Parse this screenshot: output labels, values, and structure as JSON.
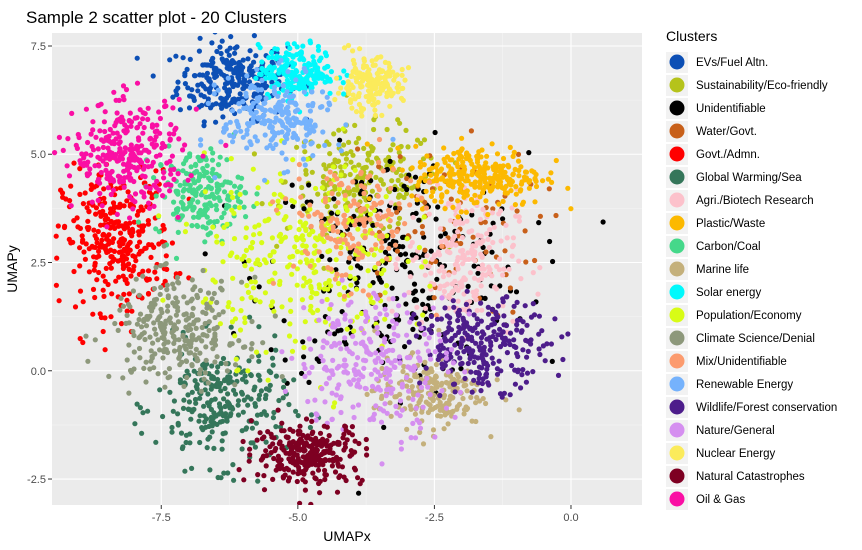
{
  "chart_data": {
    "type": "scatter",
    "title": "Sample 2 scatter plot - 20 Clusters",
    "xlabel": "UMAPx",
    "ylabel": "UMAPy",
    "xlim": [
      -9.5,
      1.3
    ],
    "ylim": [
      -3.1,
      7.8
    ],
    "xticks": [
      -7.5,
      -5.0,
      -2.5,
      0.0
    ],
    "xtick_labels": [
      "-7.5",
      "-5.0",
      "-2.5",
      "0.0"
    ],
    "yticks": [
      -2.5,
      0.0,
      2.5,
      5.0,
      7.5
    ],
    "ytick_labels": [
      "-2.5",
      "0.0",
      "2.5",
      "5.0",
      "7.5"
    ],
    "grid": true,
    "legend_title": "Clusters",
    "legend_position": "right",
    "series": [
      {
        "name": "EVs/Fuel Altn.",
        "color": "#0c4fb5",
        "center": [
          -6.2,
          6.7
        ],
        "spread": [
          0.5,
          0.45
        ],
        "n": 260
      },
      {
        "name": "Sustainability/Eco-friendly",
        "color": "#b5c31b",
        "center": [
          -3.8,
          4.4
        ],
        "spread": [
          0.7,
          0.6
        ],
        "n": 220
      },
      {
        "name": "Unidentifiable",
        "color": "#000000",
        "center": [
          -3.2,
          2.4
        ],
        "spread": [
          1.2,
          1.3
        ],
        "n": 260
      },
      {
        "name": "Water/Govt.",
        "color": "#c8601a",
        "center": [
          -2.4,
          3.2
        ],
        "spread": [
          0.9,
          1.0
        ],
        "n": 80
      },
      {
        "name": "Govt./Admn.",
        "color": "#ff0000",
        "center": [
          -8.3,
          3.0
        ],
        "spread": [
          0.5,
          0.8
        ],
        "n": 320
      },
      {
        "name": "Global Warming/Sea",
        "color": "#35765a",
        "center": [
          -6.4,
          -0.8
        ],
        "spread": [
          0.6,
          0.7
        ],
        "n": 260
      },
      {
        "name": "Agri./Biotech Research",
        "color": "#fcc1cb",
        "center": [
          -2.0,
          2.6
        ],
        "spread": [
          0.5,
          0.8
        ],
        "n": 220
      },
      {
        "name": "Plastic/Waste",
        "color": "#fcb900",
        "center": [
          -1.7,
          4.5
        ],
        "spread": [
          0.6,
          0.35
        ],
        "n": 280
      },
      {
        "name": "Carbon/Coal",
        "color": "#45d88a",
        "center": [
          -6.8,
          4.1
        ],
        "spread": [
          0.4,
          0.5
        ],
        "n": 200
      },
      {
        "name": "Marine life",
        "color": "#c4b07b",
        "center": [
          -2.6,
          -0.5
        ],
        "spread": [
          0.5,
          0.4
        ],
        "n": 200
      },
      {
        "name": "Solar energy",
        "color": "#00f9fc",
        "center": [
          -5.0,
          6.9
        ],
        "spread": [
          0.35,
          0.3
        ],
        "n": 200
      },
      {
        "name": "Population/Economy",
        "color": "#d8fc16",
        "center": [
          -4.9,
          2.6
        ],
        "spread": [
          0.9,
          1.1
        ],
        "n": 320
      },
      {
        "name": "Climate Science/Denial",
        "color": "#8d987b",
        "center": [
          -7.2,
          0.9
        ],
        "spread": [
          0.6,
          0.6
        ],
        "n": 280
      },
      {
        "name": "Mix/Unidentifiable",
        "color": "#fc9b6e",
        "center": [
          -4.0,
          3.4
        ],
        "spread": [
          0.6,
          0.7
        ],
        "n": 160
      },
      {
        "name": "Renewable Energy",
        "color": "#75b2fc",
        "center": [
          -5.4,
          5.8
        ],
        "spread": [
          0.5,
          0.5
        ],
        "n": 220
      },
      {
        "name": "Wildlife/Forest conservation",
        "color": "#4d1d8b",
        "center": [
          -1.6,
          0.6
        ],
        "spread": [
          0.6,
          0.5
        ],
        "n": 260
      },
      {
        "name": "Nature/General",
        "color": "#d58ff0",
        "center": [
          -3.6,
          0.2
        ],
        "spread": [
          0.7,
          0.8
        ],
        "n": 260
      },
      {
        "name": "Nuclear Energy",
        "color": "#fbeb5b",
        "center": [
          -3.7,
          6.6
        ],
        "spread": [
          0.3,
          0.3
        ],
        "n": 180
      },
      {
        "name": "Natural Catastrophes",
        "color": "#7e0022",
        "center": [
          -4.8,
          -1.9
        ],
        "spread": [
          0.5,
          0.35
        ],
        "n": 280
      },
      {
        "name": "Oil & Gas",
        "color": "#fa0fa4",
        "center": [
          -8.1,
          5.0
        ],
        "spread": [
          0.5,
          0.6
        ],
        "n": 300
      }
    ]
  }
}
